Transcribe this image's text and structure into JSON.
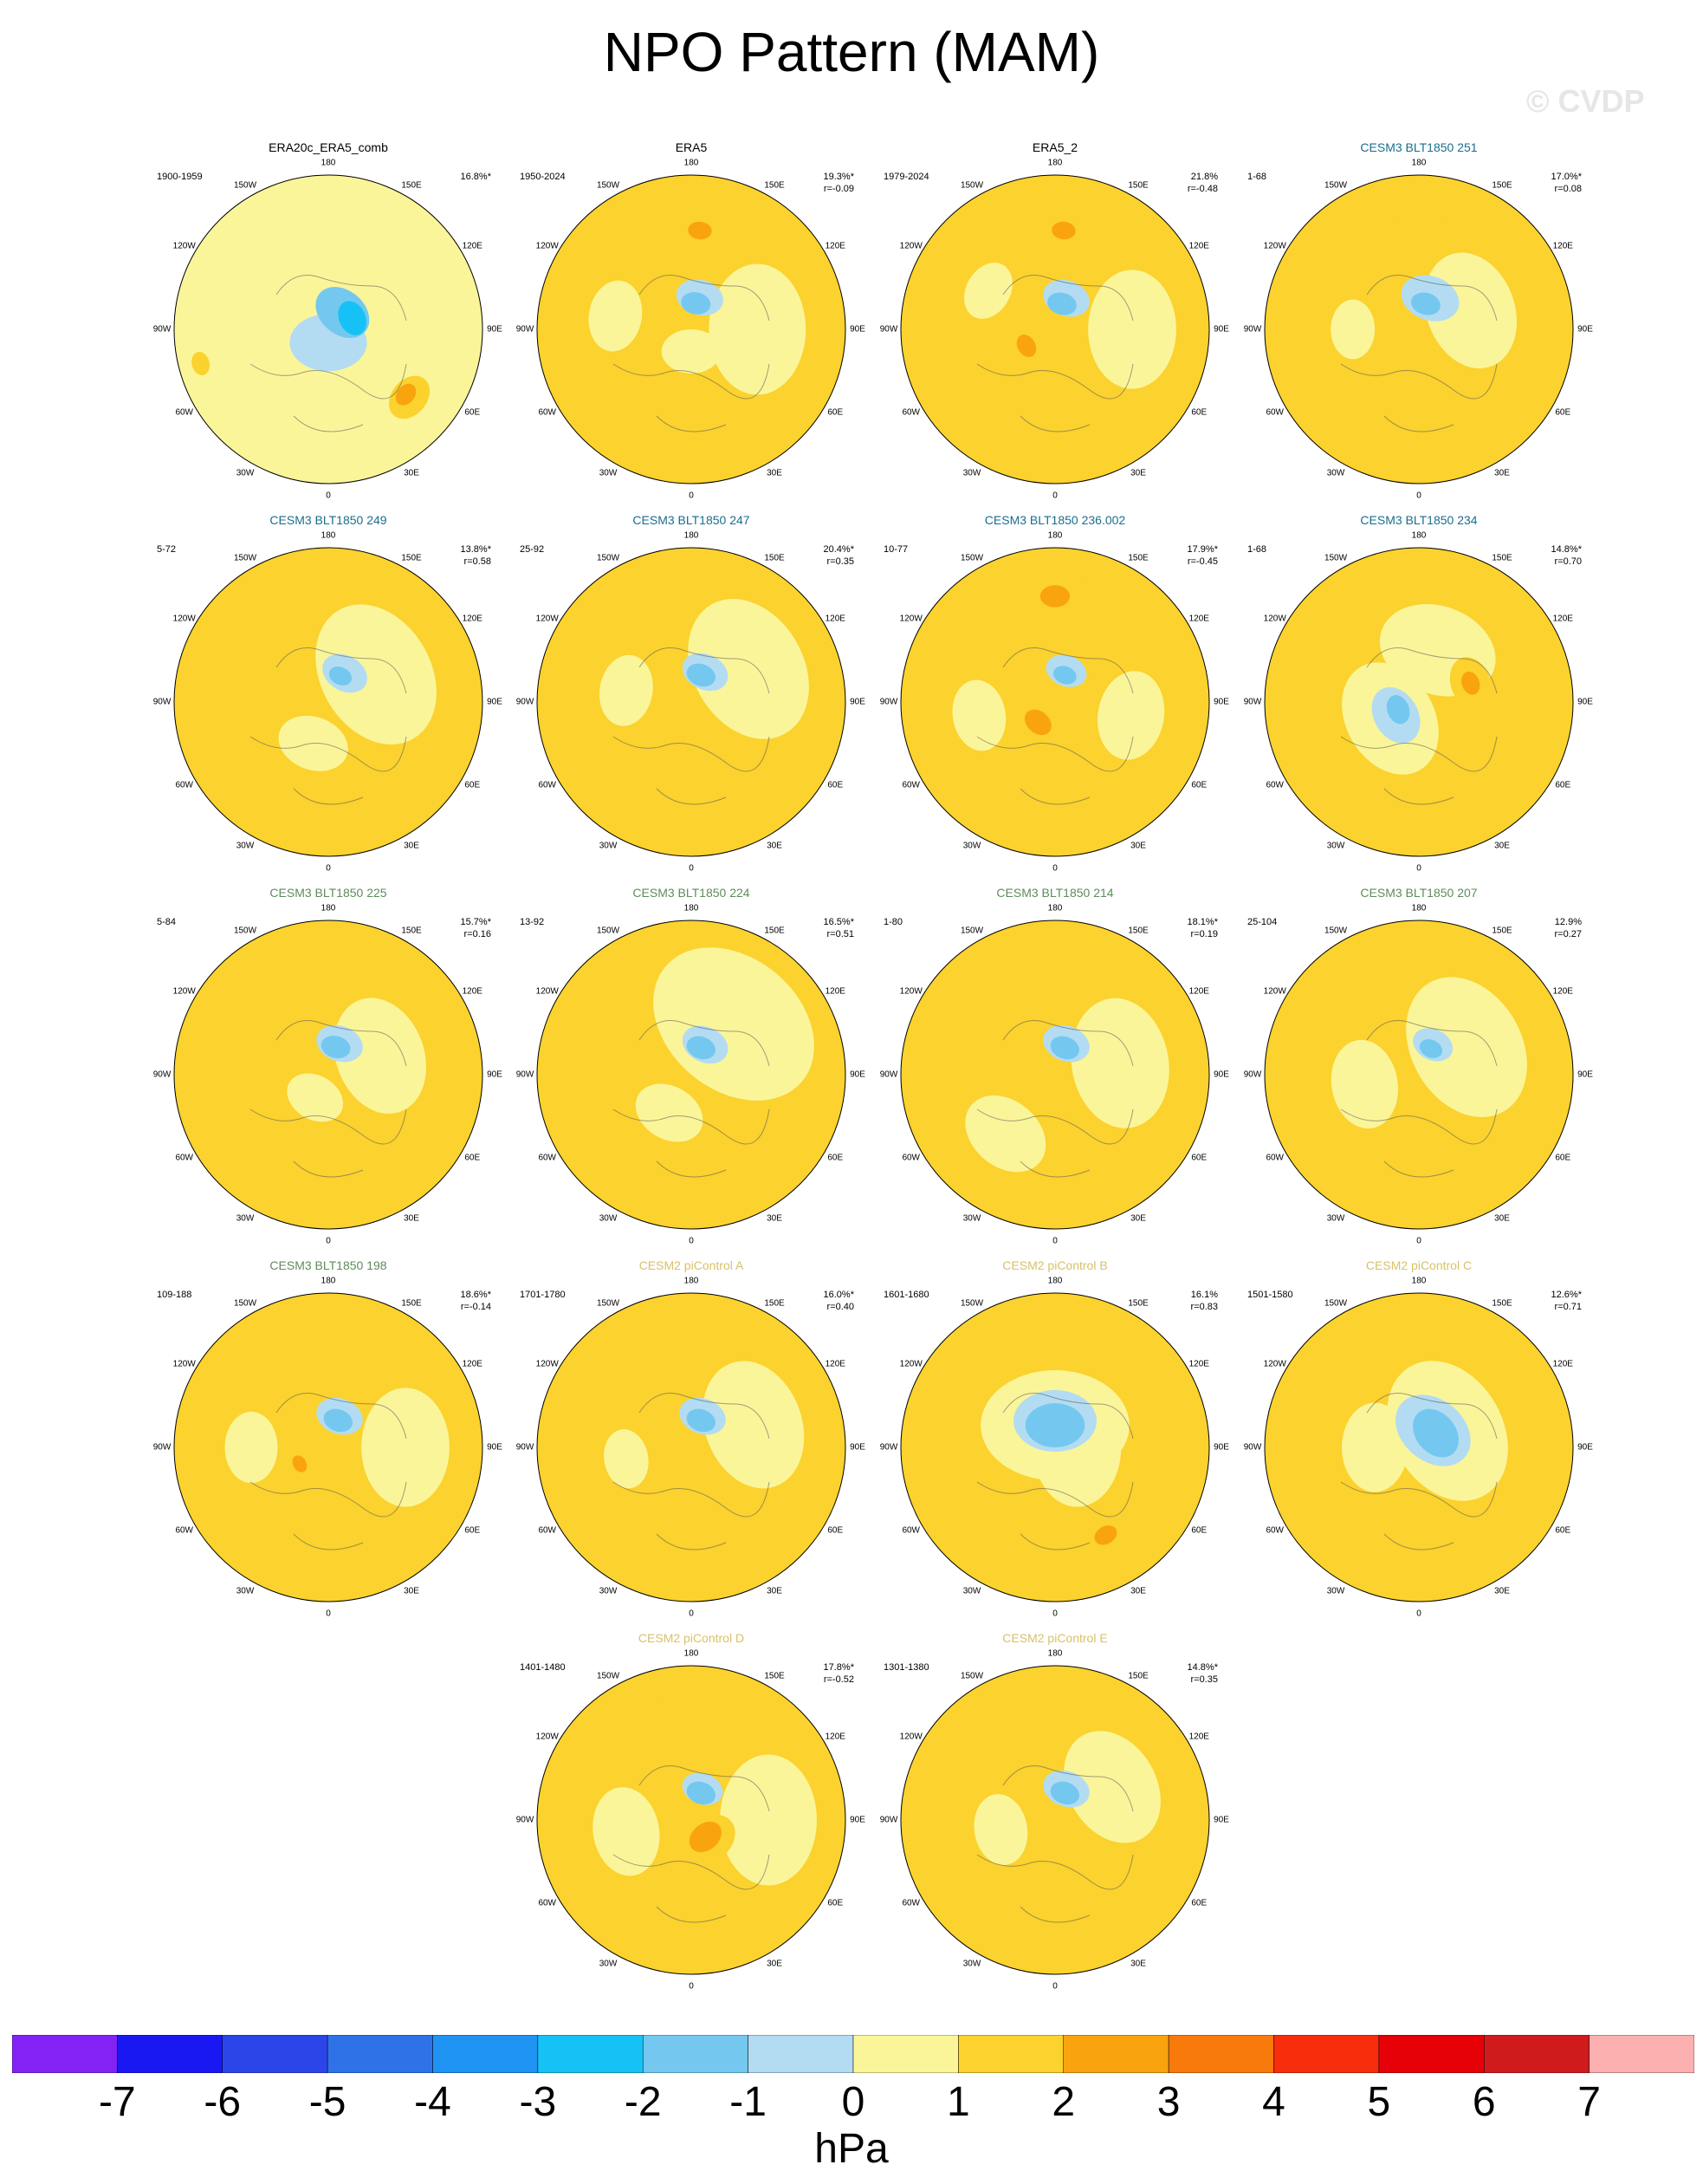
{
  "page": {
    "title": "NPO Pattern (MAM)",
    "watermark": "© CVDP"
  },
  "lon_labels": [
    "180",
    "150E",
    "120E",
    "90E",
    "60E",
    "30E",
    "0",
    "30W",
    "60W",
    "90W",
    "120W",
    "150W"
  ],
  "colors": {
    "obs_title": "#000000",
    "cesm3_blue": "#1a6e8e",
    "cesm3_green": "#5e8c5a",
    "cesm2_yellow": "#d8c16a"
  },
  "chart_data": {
    "type": "heatmap",
    "projection": "north polar stereographic",
    "units": "hPa",
    "colorbar": {
      "levels": [
        -7,
        -6,
        -5,
        -4,
        -3,
        -2,
        -1,
        0,
        1,
        2,
        3,
        4,
        5,
        6,
        7
      ],
      "colors": [
        "#8222f5",
        "#1a18f2",
        "#2b45e8",
        "#2f72e8",
        "#1f93f2",
        "#16c2f5",
        "#74c8f0",
        "#b3dcf2",
        "#fbf59a",
        "#fbd22e",
        "#f9a40e",
        "#f97a0c",
        "#f72d0c",
        "#e60007",
        "#d01b1c",
        "#fdb0b0"
      ]
    },
    "panels": [
      {
        "name": "ERA20c_ERA5_comb",
        "years": "1900-1959",
        "pct": "16.8%*",
        "r": "",
        "title_color": "obs_title",
        "background": 0,
        "features": [
          {
            "lon": 0,
            "lat": 84,
            "r": 13,
            "value": -1
          },
          {
            "lon": 220,
            "lat": 80,
            "r": 10,
            "value": -2
          },
          {
            "lon": 245,
            "lat": 78,
            "r": 6,
            "value": -3
          },
          {
            "lon": 310,
            "lat": 42,
            "r": 8,
            "value": 1
          },
          {
            "lon": 310,
            "lat": 44,
            "r": 4,
            "value": 2
          },
          {
            "lon": 75,
            "lat": 30,
            "r": 4,
            "value": 1
          }
        ]
      },
      {
        "name": "ERA5",
        "years": "1950-2024",
        "pct": "19.3%*",
        "r": "r=-0.09",
        "title_color": "obs_title",
        "background": 1,
        "features": [
          {
            "lon": 270,
            "lat": 60,
            "r": 22,
            "value": 0
          },
          {
            "lon": 100,
            "lat": 55,
            "r": 12,
            "value": 0
          },
          {
            "lon": 0,
            "lat": 80,
            "r": 10,
            "value": 0
          },
          {
            "lon": 195,
            "lat": 75,
            "r": 8,
            "value": -1
          },
          {
            "lon": 190,
            "lat": 78,
            "r": 5,
            "value": -2
          },
          {
            "lon": 180,
            "lat": 45,
            "r": 9,
            "value": 1
          },
          {
            "lon": 185,
            "lat": 45,
            "r": 4,
            "value": 2
          }
        ]
      },
      {
        "name": "ERA5_2",
        "years": "1979-2024",
        "pct": "21.8%",
        "r": "r=-0.48",
        "title_color": "obs_title",
        "background": 1,
        "features": [
          {
            "lon": 270,
            "lat": 55,
            "r": 20,
            "value": 0
          },
          {
            "lon": 120,
            "lat": 55,
            "r": 10,
            "value": 0
          },
          {
            "lon": 200,
            "lat": 75,
            "r": 8,
            "value": -1
          },
          {
            "lon": 195,
            "lat": 78,
            "r": 5,
            "value": -2
          },
          {
            "lon": 180,
            "lat": 45,
            "r": 9,
            "value": 1
          },
          {
            "lon": 185,
            "lat": 45,
            "r": 4,
            "value": 2
          },
          {
            "lon": 60,
            "lat": 75,
            "r": 7,
            "value": 1
          },
          {
            "lon": 60,
            "lat": 75,
            "r": 4,
            "value": 2
          }
        ]
      },
      {
        "name": "CESM3 BLT1850 251",
        "years": "1-68",
        "pct": "17.0%*",
        "r": "r=0.08",
        "title_color": "cesm3_blue",
        "background": 1,
        "features": [
          {
            "lon": 250,
            "lat": 65,
            "r": 20,
            "value": 0
          },
          {
            "lon": 90,
            "lat": 60,
            "r": 10,
            "value": 0
          },
          {
            "lon": 200,
            "lat": 75,
            "r": 10,
            "value": -1
          },
          {
            "lon": 195,
            "lat": 78,
            "r": 5,
            "value": -2
          },
          {
            "lon": 180,
            "lat": 45,
            "r": 9,
            "value": 1
          }
        ]
      },
      {
        "name": "CESM3 BLT1850 249",
        "years": "5-72",
        "pct": "13.8%*",
        "r": "r=0.58",
        "title_color": "cesm3_blue",
        "background": 1,
        "features": [
          {
            "lon": 240,
            "lat": 65,
            "r": 25,
            "value": 0
          },
          {
            "lon": 20,
            "lat": 70,
            "r": 12,
            "value": 0
          },
          {
            "lon": 210,
            "lat": 75,
            "r": 8,
            "value": -1
          },
          {
            "lon": 205,
            "lat": 77,
            "r": 4,
            "value": -2
          }
        ]
      },
      {
        "name": "CESM3 BLT1850 247",
        "years": "25-92",
        "pct": "20.4%*",
        "r": "r=0.35",
        "title_color": "cesm3_blue",
        "background": 1,
        "features": [
          {
            "lon": 240,
            "lat": 60,
            "r": 25,
            "value": 0
          },
          {
            "lon": 100,
            "lat": 60,
            "r": 12,
            "value": 0
          },
          {
            "lon": 205,
            "lat": 75,
            "r": 8,
            "value": -1
          },
          {
            "lon": 200,
            "lat": 77,
            "r": 5,
            "value": -2
          },
          {
            "lon": 175,
            "lat": 45,
            "r": 7,
            "value": 1
          }
        ]
      },
      {
        "name": "CESM3 BLT1850 236.002",
        "years": "10-77",
        "pct": "17.9%*",
        "r": "r=-0.45",
        "title_color": "cesm3_blue",
        "background": 1,
        "features": [
          {
            "lon": 280,
            "lat": 55,
            "r": 15,
            "value": 0
          },
          {
            "lon": 80,
            "lat": 55,
            "r": 12,
            "value": 0
          },
          {
            "lon": 200,
            "lat": 75,
            "r": 7,
            "value": -1
          },
          {
            "lon": 200,
            "lat": 77,
            "r": 4,
            "value": -2
          },
          {
            "lon": 180,
            "lat": 42,
            "r": 12,
            "value": 1
          },
          {
            "lon": 180,
            "lat": 42,
            "r": 5,
            "value": 2
          },
          {
            "lon": 40,
            "lat": 78,
            "r": 9,
            "value": 1
          },
          {
            "lon": 40,
            "lat": 78,
            "r": 5,
            "value": 2
          }
        ]
      },
      {
        "name": "CESM3 BLT1850 234",
        "years": "1-68",
        "pct": "14.8%*",
        "r": "r=0.70",
        "title_color": "cesm3_blue",
        "background": 1,
        "features": [
          {
            "lon": 200,
            "lat": 65,
            "r": 20,
            "value": 0
          },
          {
            "lon": 60,
            "lat": 75,
            "r": 20,
            "value": 0
          },
          {
            "lon": 60,
            "lat": 78,
            "r": 10,
            "value": -1
          },
          {
            "lon": 70,
            "lat": 80,
            "r": 5,
            "value": -2
          },
          {
            "lon": 250,
            "lat": 65,
            "r": 9,
            "value": 1
          },
          {
            "lon": 250,
            "lat": 65,
            "r": 4,
            "value": 2
          }
        ]
      },
      {
        "name": "CESM3 BLT1850 225",
        "years": "5-84",
        "pct": "15.7%*",
        "r": "r=0.16",
        "title_color": "cesm3_green",
        "background": 1,
        "features": [
          {
            "lon": 250,
            "lat": 65,
            "r": 20,
            "value": 0
          },
          {
            "lon": 30,
            "lat": 78,
            "r": 10,
            "value": 0
          },
          {
            "lon": 200,
            "lat": 75,
            "r": 8,
            "value": -1
          },
          {
            "lon": 195,
            "lat": 77,
            "r": 5,
            "value": -2
          },
          {
            "lon": 180,
            "lat": 45,
            "r": 8,
            "value": 1
          }
        ]
      },
      {
        "name": "CESM3 BLT1850 224",
        "years": "13-92",
        "pct": "16.5%*",
        "r": "r=0.51",
        "title_color": "cesm3_green",
        "background": 1,
        "features": [
          {
            "lon": 220,
            "lat": 60,
            "r": 30,
            "value": 0
          },
          {
            "lon": 30,
            "lat": 70,
            "r": 12,
            "value": 0
          },
          {
            "lon": 205,
            "lat": 75,
            "r": 8,
            "value": -1
          },
          {
            "lon": 200,
            "lat": 77,
            "r": 5,
            "value": -2
          }
        ]
      },
      {
        "name": "CESM3 BLT1850 214",
        "years": "1-80",
        "pct": "18.1%*",
        "r": "r=0.19",
        "title_color": "cesm3_green",
        "background": 1,
        "features": [
          {
            "lon": 260,
            "lat": 60,
            "r": 22,
            "value": 0
          },
          {
            "lon": 40,
            "lat": 55,
            "r": 15,
            "value": 0
          },
          {
            "lon": 200,
            "lat": 75,
            "r": 8,
            "value": -1
          },
          {
            "lon": 200,
            "lat": 77,
            "r": 5,
            "value": -2
          },
          {
            "lon": 180,
            "lat": 45,
            "r": 8,
            "value": 1
          }
        ]
      },
      {
        "name": "CESM3 BLT1850 207",
        "years": "25-104",
        "pct": "12.9%",
        "r": "r=0.27",
        "title_color": "cesm3_green",
        "background": 1,
        "features": [
          {
            "lon": 240,
            "lat": 65,
            "r": 25,
            "value": 0
          },
          {
            "lon": 80,
            "lat": 65,
            "r": 15,
            "value": 0
          },
          {
            "lon": 205,
            "lat": 75,
            "r": 7,
            "value": -1
          },
          {
            "lon": 205,
            "lat": 77,
            "r": 4,
            "value": -2
          }
        ]
      },
      {
        "name": "CESM3 BLT1850 198",
        "years": "109-188",
        "pct": "18.6%*",
        "r": "r=-0.14",
        "title_color": "cesm3_green",
        "background": 1,
        "features": [
          {
            "lon": 270,
            "lat": 55,
            "r": 20,
            "value": 0
          },
          {
            "lon": 90,
            "lat": 55,
            "r": 12,
            "value": 0
          },
          {
            "lon": 200,
            "lat": 75,
            "r": 8,
            "value": -1
          },
          {
            "lon": 200,
            "lat": 77,
            "r": 5,
            "value": -2
          },
          {
            "lon": 180,
            "lat": 45,
            "r": 9,
            "value": 1
          },
          {
            "lon": 60,
            "lat": 75,
            "r": 7,
            "value": 1
          },
          {
            "lon": 60,
            "lat": 75,
            "r": 3,
            "value": 2
          }
        ]
      },
      {
        "name": "CESM2 piControl A",
        "years": "1701-1780",
        "pct": "16.0%*",
        "r": "r=0.40",
        "title_color": "cesm2_yellow",
        "background": 1,
        "features": [
          {
            "lon": 250,
            "lat": 60,
            "r": 22,
            "value": 0
          },
          {
            "lon": 80,
            "lat": 60,
            "r": 10,
            "value": 0
          },
          {
            "lon": 200,
            "lat": 75,
            "r": 8,
            "value": -1
          },
          {
            "lon": 200,
            "lat": 77,
            "r": 5,
            "value": -2
          },
          {
            "lon": 180,
            "lat": 45,
            "r": 8,
            "value": 1
          }
        ]
      },
      {
        "name": "CESM2 piControl B",
        "years": "1601-1680",
        "pct": "16.1%",
        "r": "r=0.83",
        "title_color": "cesm2_yellow",
        "background": 1,
        "features": [
          {
            "lon": 180,
            "lat": 80,
            "r": 25,
            "value": 0
          },
          {
            "lon": 270,
            "lat": 80,
            "r": 20,
            "value": 0
          },
          {
            "lon": 180,
            "lat": 78,
            "r": 14,
            "value": -1
          },
          {
            "lon": 180,
            "lat": 80,
            "r": 10,
            "value": -2
          },
          {
            "lon": 330,
            "lat": 42,
            "r": 10,
            "value": 1
          },
          {
            "lon": 330,
            "lat": 44,
            "r": 4,
            "value": 2
          }
        ]
      },
      {
        "name": "CESM2 piControl C",
        "years": "1501-1580",
        "pct": "12.6%*",
        "r": "r=0.71",
        "title_color": "cesm2_yellow",
        "background": 1,
        "features": [
          {
            "lon": 240,
            "lat": 75,
            "r": 25,
            "value": 0
          },
          {
            "lon": 90,
            "lat": 70,
            "r": 15,
            "value": 0
          },
          {
            "lon": 220,
            "lat": 80,
            "r": 14,
            "value": -1
          },
          {
            "lon": 230,
            "lat": 80,
            "r": 9,
            "value": -2
          }
        ]
      },
      {
        "name": "CESM2 piControl D",
        "years": "1401-1480",
        "pct": "17.8%*",
        "r": "r=-0.52",
        "title_color": "cesm2_yellow",
        "background": 1,
        "features": [
          {
            "lon": 270,
            "lat": 55,
            "r": 22,
            "value": 0
          },
          {
            "lon": 80,
            "lat": 60,
            "r": 15,
            "value": 0
          },
          {
            "lon": 200,
            "lat": 75,
            "r": 7,
            "value": -1
          },
          {
            "lon": 200,
            "lat": 77,
            "r": 5,
            "value": -2
          },
          {
            "lon": 180,
            "lat": 42,
            "r": 12,
            "value": 1
          },
          {
            "lon": 320,
            "lat": 78,
            "r": 10,
            "value": 1
          },
          {
            "lon": 320,
            "lat": 80,
            "r": 6,
            "value": 2
          }
        ]
      },
      {
        "name": "CESM2 piControl E",
        "years": "1301-1380",
        "pct": "14.8%*",
        "r": "r=0.35",
        "title_color": "cesm2_yellow",
        "background": 1,
        "features": [
          {
            "lon": 240,
            "lat": 60,
            "r": 20,
            "value": 0
          },
          {
            "lon": 80,
            "lat": 65,
            "r": 12,
            "value": 0
          },
          {
            "lon": 200,
            "lat": 75,
            "r": 8,
            "value": -1
          },
          {
            "lon": 200,
            "lat": 77,
            "r": 5,
            "value": -2
          },
          {
            "lon": 180,
            "lat": 45,
            "r": 6,
            "value": 1
          }
        ]
      }
    ]
  }
}
